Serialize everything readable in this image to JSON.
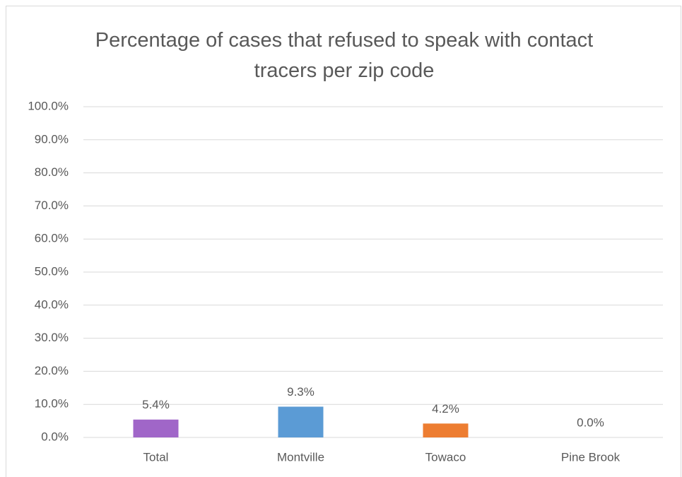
{
  "chart_data": {
    "type": "bar",
    "title": "Percentage of cases that refused to speak with contact tracers per zip code",
    "categories": [
      "Total",
      "Montville",
      "Towaco",
      "Pine Brook"
    ],
    "values": [
      5.4,
      9.3,
      4.2,
      0.0
    ],
    "value_labels": [
      "5.4%",
      "9.3%",
      "4.2%",
      "0.0%"
    ],
    "colors": [
      "#a066c8",
      "#5b9bd5",
      "#ed7d31",
      "#4472c4"
    ],
    "ylim": [
      0,
      100
    ],
    "yticks": [
      {
        "value": 0,
        "label": "0.0%"
      },
      {
        "value": 10,
        "label": "10.0%"
      },
      {
        "value": 20,
        "label": "20.0%"
      },
      {
        "value": 30,
        "label": "30.0%"
      },
      {
        "value": 40,
        "label": "40.0%"
      },
      {
        "value": 50,
        "label": "50.0%"
      },
      {
        "value": 60,
        "label": "60.0%"
      },
      {
        "value": 70,
        "label": "70.0%"
      },
      {
        "value": 80,
        "label": "80.0%"
      },
      {
        "value": 90,
        "label": "90.0%"
      },
      {
        "value": 100,
        "label": "100.0%"
      }
    ],
    "grid": true
  }
}
